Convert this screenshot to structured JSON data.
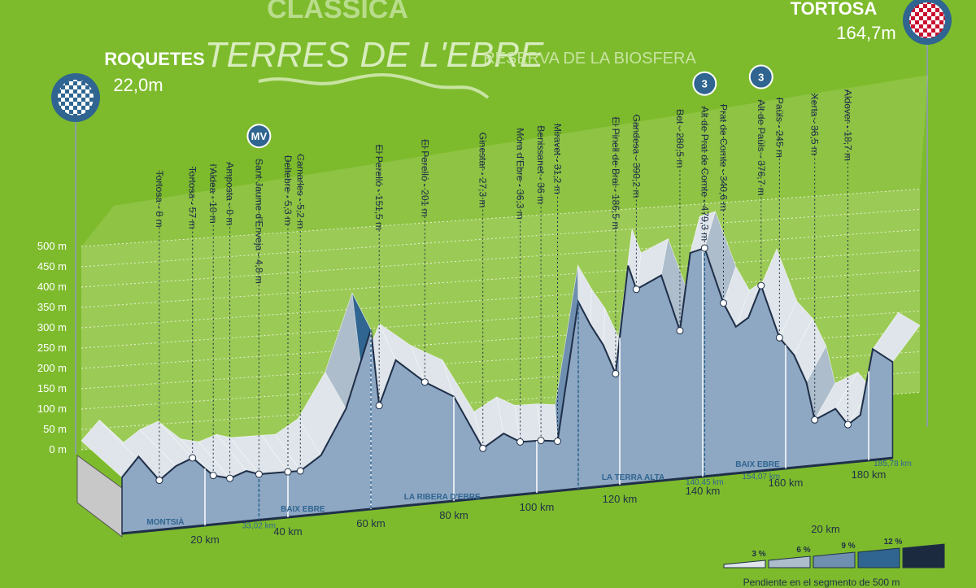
{
  "chart_data": {
    "type": "area",
    "supertitle": "CLASSICA",
    "title": "TERRES DE L'EBRE",
    "subtitle": "RESERVA DE LA BIOSFERA",
    "start_name": "ROQUETES",
    "start_elevation": "22,0m",
    "finish_name": "TORTOSA",
    "finish_elevation": "164,7m",
    "x": [
      0,
      4,
      9,
      13,
      17,
      22,
      26,
      30,
      33.02,
      40,
      43,
      48,
      54,
      60,
      62,
      66,
      73,
      80,
      87,
      92,
      96,
      101,
      105,
      110,
      113,
      116,
      119,
      122,
      124,
      130,
      134.5,
      137,
      140.45,
      145,
      148,
      151,
      154.07,
      158.5,
      162,
      165,
      167,
      172,
      175,
      178,
      181,
      185.78
    ],
    "values": [
      22,
      70,
      8,
      40,
      57,
      10,
      0,
      15,
      4.8,
      5.3,
      5.2,
      40,
      150,
      340,
      151.5,
      260,
      201,
      160,
      27.3,
      60,
      36.3,
      36,
      31.2,
      370,
      310,
      260,
      186.5,
      450,
      390.2,
      420,
      280.5,
      470,
      479.3,
      340.6,
      280,
      300,
      376.7,
      245,
      200,
      130,
      36.5,
      60,
      18.7,
      40,
      200,
      164.7
    ],
    "color": "#8ea7c3",
    "xlim": [
      0,
      185.78
    ],
    "ylim": [
      0,
      500
    ],
    "yticks": [
      {
        "value": 0,
        "label": "0 m"
      },
      {
        "value": 50,
        "label": "50 m"
      },
      {
        "value": 100,
        "label": "100 m"
      },
      {
        "value": 150,
        "label": "150 m"
      },
      {
        "value": 200,
        "label": "200 m"
      },
      {
        "value": 250,
        "label": "250 m"
      },
      {
        "value": 300,
        "label": "300 m"
      },
      {
        "value": 350,
        "label": "350 m"
      },
      {
        "value": 400,
        "label": "400 m"
      },
      {
        "value": 450,
        "label": "450 m"
      },
      {
        "value": 500,
        "label": "500 m"
      }
    ],
    "xticks": [
      {
        "value": 20,
        "label": "20 km"
      },
      {
        "value": 40,
        "label": "40 km"
      },
      {
        "value": 60,
        "label": "60 km"
      },
      {
        "value": 80,
        "label": "80 km"
      },
      {
        "value": 100,
        "label": "100 km"
      },
      {
        "value": 120,
        "label": "120 km"
      },
      {
        "value": 140,
        "label": "140 km"
      },
      {
        "value": 160,
        "label": "160 km"
      },
      {
        "value": 180,
        "label": "180 km"
      }
    ],
    "scale_label": "20 km",
    "waypoints": [
      {
        "label": "Tortosa - 8 m",
        "x": 9,
        "value": 8
      },
      {
        "label": "Tortosa - 57 m",
        "x": 17,
        "value": 57
      },
      {
        "label": "l'Aldea - 10 m",
        "x": 22,
        "value": 10
      },
      {
        "label": "Amposta - 0 m",
        "x": 26,
        "value": 0
      },
      {
        "label": "Sant Jaume d'Enveja - 4,8 m",
        "x": 33.02,
        "value": 4.8
      },
      {
        "label": "Deltebre - 5,3 m",
        "x": 40,
        "value": 5.3
      },
      {
        "label": "Camarles - 5,2 m",
        "x": 43,
        "value": 5.2
      },
      {
        "label": "El Perelló - 151,5 m",
        "x": 62,
        "value": 151.5
      },
      {
        "label": "El Perelló - 201 m",
        "x": 73,
        "value": 201
      },
      {
        "label": "Ginestar - 27,3 m",
        "x": 87,
        "value": 27.3
      },
      {
        "label": "Móra d'Ebre - 36,3 m",
        "x": 96,
        "value": 36.3
      },
      {
        "label": "Benissanet - 36 m",
        "x": 101,
        "value": 36
      },
      {
        "label": "Miravet - 31,2 m",
        "x": 105,
        "value": 31.2
      },
      {
        "label": "El Pinell de Brai - 186,5 m",
        "x": 119,
        "value": 186.5
      },
      {
        "label": "Gandesa - 390,2 m",
        "x": 124,
        "value": 390.2
      },
      {
        "label": "Bot - 280,5 m",
        "x": 134.5,
        "value": 280.5
      },
      {
        "label": "Alt de Prat de Comte - 479,3 m",
        "x": 140.45,
        "value": 479.3
      },
      {
        "label": "Prat de Comte - 340,6 m",
        "x": 145,
        "value": 340.6
      },
      {
        "label": "Alt de Paüls - 376,7 m",
        "x": 154.07,
        "value": 376.7
      },
      {
        "label": "Paüls - 245 m",
        "x": 158.5,
        "value": 245
      },
      {
        "label": "Xerta - 36,5 m",
        "x": 167,
        "value": 36.5
      },
      {
        "label": "Aldover - 18,7 m",
        "x": 175,
        "value": 18.7
      }
    ],
    "climbs": [
      {
        "label": "MV",
        "x": 33.02
      },
      {
        "label": "3",
        "x": 140.45
      },
      {
        "label": "3",
        "x": 154.07
      }
    ],
    "km_markers": [
      {
        "value": 33.02,
        "label": "33,02 km"
      },
      {
        "value": 140.45,
        "label": "140,45 km"
      },
      {
        "value": 154.07,
        "label": "154,07 km"
      },
      {
        "value": 185.78,
        "label": "185,78 km"
      }
    ],
    "sectors": [
      {
        "label": "MONTSIÀ",
        "from": 0,
        "to": 33.02
      },
      {
        "label": "BAIX EBRE",
        "from": 33.02,
        "to": 60
      },
      {
        "label": "LA RIBERA D'EBRE",
        "from": 60,
        "to": 110
      },
      {
        "label": "LA TERRA ALTA",
        "from": 110,
        "to": 140.45
      },
      {
        "label": "BAIX EBRE",
        "from": 140.45,
        "to": 185.78
      }
    ],
    "slope_legend": [
      {
        "value": 3,
        "label": "3 %",
        "color": "#dfe5ea"
      },
      {
        "value": 6,
        "label": "6 %",
        "color": "#aebdcc"
      },
      {
        "value": 9,
        "label": "9 %",
        "color": "#6f8fb0"
      },
      {
        "value": 12,
        "label": "12 %",
        "color": "#2f6590"
      }
    ],
    "steep_color": "#1c2a40",
    "slope_caption": "Pendiente en el segmento de 500 m"
  }
}
